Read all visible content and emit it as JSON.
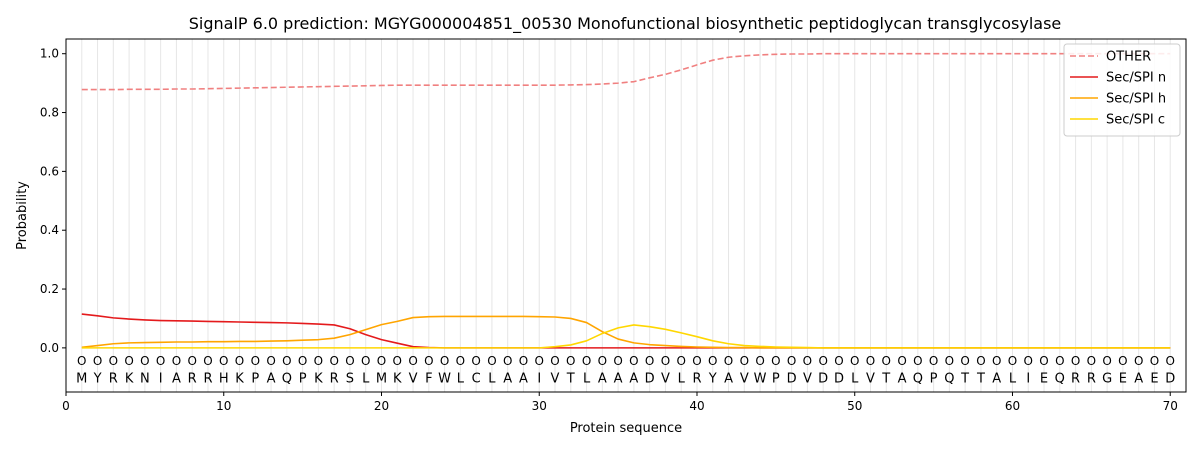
{
  "chart_data": {
    "type": "line",
    "title": "SignalP 6.0 prediction: MGYG000004851_00530 Monofunctional biosynthetic peptidoglycan transglycosylase",
    "xlabel": "Protein sequence",
    "ylabel": "Probability",
    "xlim": [
      0,
      71
    ],
    "ylim": [
      -0.15,
      1.05
    ],
    "x_ticks": [
      0,
      10,
      20,
      30,
      40,
      50,
      60,
      70
    ],
    "y_ticks": [
      0.0,
      0.2,
      0.4,
      0.6,
      0.8,
      1.0
    ],
    "x_tick_labels": [
      "0",
      "10",
      "20",
      "30",
      "40",
      "50",
      "60",
      "70"
    ],
    "y_tick_labels": [
      "0.0",
      "0.2",
      "0.4",
      "0.6",
      "0.8",
      "1.0"
    ],
    "legend_position": "top-right",
    "grid": "vertical lines at each residue",
    "sequence": [
      "M",
      "Y",
      "R",
      "K",
      "N",
      "I",
      "A",
      "R",
      "R",
      "H",
      "K",
      "P",
      "A",
      "Q",
      "P",
      "K",
      "R",
      "S",
      "L",
      "M",
      "K",
      "V",
      "F",
      "W",
      "L",
      "C",
      "L",
      "A",
      "A",
      "I",
      "V",
      "T",
      "L",
      "A",
      "A",
      "A",
      "D",
      "V",
      "L",
      "R",
      "Y",
      "A",
      "V",
      "W",
      "P",
      "D",
      "V",
      "D",
      "D",
      "L",
      "V",
      "T",
      "A",
      "Q",
      "P",
      "Q",
      "T",
      "T",
      "A",
      "L",
      "I",
      "E",
      "Q",
      "R",
      "R",
      "G",
      "E",
      "A",
      "E",
      "D"
    ],
    "residue_marker": "O",
    "x": [
      1,
      2,
      3,
      4,
      5,
      6,
      7,
      8,
      9,
      10,
      11,
      12,
      13,
      14,
      15,
      16,
      17,
      18,
      19,
      20,
      21,
      22,
      23,
      24,
      25,
      26,
      27,
      28,
      29,
      30,
      31,
      32,
      33,
      34,
      35,
      36,
      37,
      38,
      39,
      40,
      41,
      42,
      43,
      44,
      45,
      46,
      47,
      48,
      49,
      50,
      51,
      52,
      53,
      54,
      55,
      56,
      57,
      58,
      59,
      60,
      61,
      62,
      63,
      64,
      65,
      66,
      67,
      68,
      69,
      70
    ],
    "series": [
      {
        "name": "OTHER",
        "color": "#f08080",
        "dashed": true,
        "values": [
          0.878,
          0.878,
          0.878,
          0.879,
          0.879,
          0.879,
          0.88,
          0.88,
          0.881,
          0.882,
          0.883,
          0.884,
          0.885,
          0.886,
          0.887,
          0.888,
          0.889,
          0.89,
          0.891,
          0.892,
          0.893,
          0.893,
          0.893,
          0.893,
          0.893,
          0.893,
          0.893,
          0.893,
          0.893,
          0.893,
          0.893,
          0.894,
          0.895,
          0.897,
          0.9,
          0.905,
          0.918,
          0.93,
          0.945,
          0.962,
          0.978,
          0.988,
          0.993,
          0.996,
          0.998,
          0.999,
          0.999,
          1.0,
          1.0,
          1.0,
          1.0,
          1.0,
          1.0,
          1.0,
          1.0,
          1.0,
          1.0,
          1.0,
          1.0,
          1.0,
          1.0,
          1.0,
          1.0,
          1.0,
          1.0,
          1.0,
          1.0,
          1.0,
          1.0,
          1.0
        ]
      },
      {
        "name": "Sec/SPI n",
        "color": "#e41a1c",
        "dashed": false,
        "values": [
          0.115,
          0.109,
          0.102,
          0.098,
          0.095,
          0.093,
          0.092,
          0.091,
          0.09,
          0.089,
          0.088,
          0.087,
          0.086,
          0.085,
          0.083,
          0.081,
          0.078,
          0.065,
          0.045,
          0.028,
          0.016,
          0.004,
          0.001,
          0.0,
          0.0,
          0.0,
          0.0,
          0.0,
          0.0,
          0.0,
          0.0,
          0.0,
          0.0,
          0.0,
          0.0,
          0.0,
          0.0,
          0.0,
          0.0,
          0.0,
          0.0,
          0.0,
          0.0,
          0.0,
          0.0,
          0.0,
          0.0,
          0.0,
          0.0,
          0.0,
          0.0,
          0.0,
          0.0,
          0.0,
          0.0,
          0.0,
          0.0,
          0.0,
          0.0,
          0.0,
          0.0,
          0.0,
          0.0,
          0.0,
          0.0,
          0.0,
          0.0,
          0.0,
          0.0,
          0.0
        ]
      },
      {
        "name": "Sec/SPI h",
        "color": "#ffa500",
        "dashed": false,
        "values": [
          0.002,
          0.008,
          0.014,
          0.017,
          0.018,
          0.019,
          0.02,
          0.02,
          0.021,
          0.021,
          0.022,
          0.022,
          0.023,
          0.024,
          0.026,
          0.028,
          0.033,
          0.045,
          0.062,
          0.079,
          0.09,
          0.103,
          0.106,
          0.107,
          0.107,
          0.107,
          0.107,
          0.107,
          0.107,
          0.106,
          0.105,
          0.1,
          0.086,
          0.055,
          0.03,
          0.017,
          0.011,
          0.008,
          0.005,
          0.003,
          0.002,
          0.001,
          0.001,
          0.0,
          0.0,
          0.0,
          0.0,
          0.0,
          0.0,
          0.0,
          0.0,
          0.0,
          0.0,
          0.0,
          0.0,
          0.0,
          0.0,
          0.0,
          0.0,
          0.0,
          0.0,
          0.0,
          0.0,
          0.0,
          0.0,
          0.0,
          0.0,
          0.0,
          0.0,
          0.0
        ]
      },
      {
        "name": "Sec/SPI c",
        "color": "#ffd700",
        "dashed": false,
        "values": [
          0.0,
          0.0,
          0.0,
          0.0,
          0.0,
          0.0,
          0.0,
          0.0,
          0.0,
          0.0,
          0.0,
          0.0,
          0.0,
          0.0,
          0.0,
          0.0,
          0.0,
          0.0,
          0.0,
          0.0,
          0.0,
          0.0,
          0.0,
          0.0,
          0.0,
          0.0,
          0.0,
          0.0,
          0.0,
          0.0,
          0.004,
          0.01,
          0.024,
          0.049,
          0.068,
          0.078,
          0.072,
          0.063,
          0.051,
          0.038,
          0.024,
          0.014,
          0.008,
          0.005,
          0.003,
          0.002,
          0.001,
          0.0,
          0.0,
          0.0,
          0.0,
          0.0,
          0.0,
          0.0,
          0.0,
          0.0,
          0.0,
          0.0,
          0.0,
          0.0,
          0.0,
          0.0,
          0.0,
          0.0,
          0.0,
          0.0,
          0.0,
          0.0,
          0.0,
          0.0
        ]
      }
    ]
  }
}
